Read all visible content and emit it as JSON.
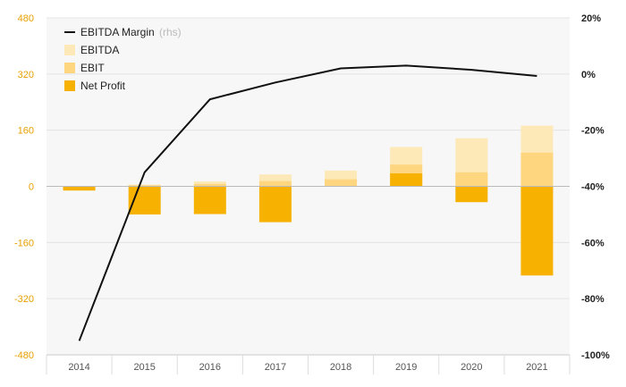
{
  "chart_data": {
    "type": "bar",
    "categories": [
      "2014",
      "2015",
      "2016",
      "2017",
      "2018",
      "2019",
      "2020",
      "2021"
    ],
    "series": [
      {
        "name": "EBITDA",
        "kind": "bar",
        "axis": "left",
        "color": "#fde9b8",
        "values": [
          -5,
          5,
          14,
          34,
          45,
          112,
          137,
          173
        ]
      },
      {
        "name": "EBIT",
        "kind": "bar",
        "axis": "left",
        "color": "#fdd67f",
        "values": [
          -8,
          3,
          7,
          15,
          20,
          62,
          40,
          96
        ]
      },
      {
        "name": "Net Profit",
        "kind": "bar",
        "axis": "left",
        "color": "#f7b100",
        "values": [
          -12,
          -80,
          -79,
          -102,
          0,
          37,
          -45,
          -254
        ]
      },
      {
        "name": "EBITDA Margin",
        "name_suffix": "(rhs)",
        "kind": "line",
        "axis": "right",
        "color": "#111111",
        "values": [
          -95,
          -35,
          -9,
          -3,
          2,
          3,
          1.5,
          -0.7
        ]
      }
    ],
    "yleft": {
      "ticks": [
        "480",
        "320",
        "160",
        "0",
        "-160",
        "-320",
        "-480"
      ],
      "ylim": [
        -480,
        480
      ]
    },
    "yright": {
      "ticks": [
        "20%",
        "0%",
        "-20%",
        "-40%",
        "-60%",
        "-80%",
        "-100%"
      ],
      "ylim": [
        -100,
        20
      ]
    },
    "legend": {
      "position": "top-left",
      "entries": [
        {
          "label": "EBITDA Margin",
          "suffix": "(rhs)",
          "type": "line",
          "color": "#111111"
        },
        {
          "label": "EBITDA",
          "type": "box",
          "color": "#fde9b8"
        },
        {
          "label": "EBIT",
          "type": "box",
          "color": "#fdd67f"
        },
        {
          "label": "Net Profit",
          "type": "box",
          "color": "#f7b100"
        }
      ]
    },
    "plot_background": "#f7f7f7",
    "grid": true
  }
}
